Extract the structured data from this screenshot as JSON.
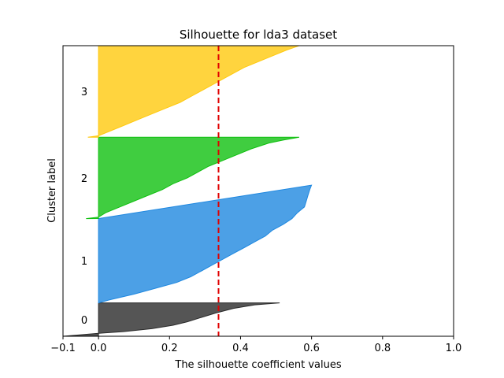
{
  "chart_data": {
    "type": "area",
    "title": "Silhouette for lda3 dataset",
    "xlabel": "The silhouette coefficient values",
    "ylabel": "Cluster label",
    "xlim": [
      -0.1,
      1.0
    ],
    "ylim": [
      0,
      100
    ],
    "xticks": [
      -0.1,
      0.0,
      0.2,
      0.4,
      0.6,
      0.8,
      1.0
    ],
    "xtick_labels": [
      "−0.1",
      "0.0",
      "0.2",
      "0.4",
      "0.6",
      "0.8",
      "1.0"
    ],
    "grid": false,
    "average_silhouette": 0.338,
    "average_line_color": "#e00000",
    "clusters": [
      {
        "label": "0",
        "color": "#2b2b2b",
        "y_lower": 0,
        "y_upper": 11.5,
        "profile": [
          [
            0,
            -0.1
          ],
          [
            1,
            0.0
          ],
          [
            1.6,
            0.07
          ],
          [
            2.6,
            0.15
          ],
          [
            3.8,
            0.21
          ],
          [
            5,
            0.25
          ],
          [
            6.5,
            0.29
          ],
          [
            8,
            0.33
          ],
          [
            9.6,
            0.38
          ],
          [
            10.8,
            0.44
          ],
          [
            11.5,
            0.51
          ]
        ]
      },
      {
        "label": "1",
        "color": "#1f88e0",
        "y_lower": 11.5,
        "y_upper": 40.5,
        "profile": [
          [
            0,
            0.0
          ],
          [
            1,
            0.03
          ],
          [
            3,
            0.1
          ],
          [
            5,
            0.16
          ],
          [
            7,
            0.22
          ],
          [
            9,
            0.26
          ],
          [
            11,
            0.29
          ],
          [
            13,
            0.32
          ],
          [
            15,
            0.35
          ],
          [
            17,
            0.38
          ],
          [
            19,
            0.41
          ],
          [
            21,
            0.44
          ],
          [
            23,
            0.47
          ],
          [
            25,
            0.49
          ],
          [
            27,
            0.52
          ],
          [
            29,
            0.545
          ],
          [
            31,
            0.56
          ],
          [
            33,
            0.58
          ],
          [
            35,
            0.585
          ],
          [
            37,
            0.59
          ],
          [
            39,
            0.595
          ],
          [
            40.5,
            0.6
          ]
        ]
      },
      {
        "label": "2",
        "color": "#10c010",
        "y_lower": 40.5,
        "y_upper": 68.5,
        "profile": [
          [
            0,
            -0.035
          ],
          [
            0.5,
            0.0
          ],
          [
            2,
            0.02
          ],
          [
            4,
            0.06
          ],
          [
            6,
            0.1
          ],
          [
            8,
            0.14
          ],
          [
            10,
            0.18
          ],
          [
            12,
            0.21
          ],
          [
            14,
            0.25
          ],
          [
            16,
            0.28
          ],
          [
            18,
            0.31
          ],
          [
            20,
            0.35
          ],
          [
            22,
            0.39
          ],
          [
            24,
            0.43
          ],
          [
            26,
            0.48
          ],
          [
            27,
            0.52
          ],
          [
            28,
            0.565
          ]
        ]
      },
      {
        "label": "3",
        "color": "#ffc90e",
        "y_lower": 68.5,
        "y_upper": 100,
        "profile": [
          [
            0,
            -0.03
          ],
          [
            0.5,
            0.0
          ],
          [
            2,
            0.03
          ],
          [
            4,
            0.07
          ],
          [
            6,
            0.11
          ],
          [
            8,
            0.15
          ],
          [
            10,
            0.19
          ],
          [
            12,
            0.23
          ],
          [
            14,
            0.26
          ],
          [
            16,
            0.29
          ],
          [
            18,
            0.32
          ],
          [
            20,
            0.35
          ],
          [
            22,
            0.38
          ],
          [
            24,
            0.41
          ],
          [
            26,
            0.45
          ],
          [
            28,
            0.49
          ],
          [
            30,
            0.53
          ],
          [
            31.5,
            0.565
          ]
        ]
      }
    ]
  }
}
